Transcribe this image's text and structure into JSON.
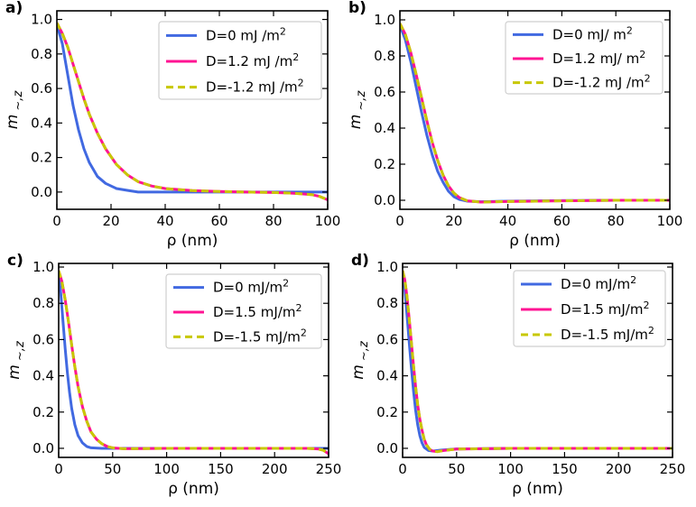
{
  "chart_data": [
    {
      "type": "line",
      "panel_label": "a)",
      "xlabel": "ρ (nm)",
      "ylabel": "m∼,z",
      "xlim": [
        0,
        100
      ],
      "ylim": [
        -0.1,
        1.05
      ],
      "xticks": [
        0,
        20,
        40,
        60,
        80,
        100
      ],
      "yticks": [
        0.0,
        0.2,
        0.4,
        0.6,
        0.8,
        1.0
      ],
      "legend_position": "top-right",
      "series": [
        {
          "name": "D=0 mJ /m²",
          "style": "solid",
          "color": "#4169e1",
          "x": [
            0,
            2,
            4,
            6,
            8,
            10,
            12,
            15,
            18,
            22,
            26,
            30,
            40,
            60,
            80,
            100
          ],
          "y": [
            0.97,
            0.86,
            0.68,
            0.5,
            0.36,
            0.25,
            0.17,
            0.09,
            0.05,
            0.02,
            0.01,
            0.0,
            0.0,
            0.0,
            0.0,
            0.0
          ]
        },
        {
          "name": "D=1.2 mJ /m²",
          "style": "solid",
          "color": "#ff1493",
          "x": [
            0,
            2,
            4,
            6,
            8,
            10,
            12,
            15,
            18,
            22,
            26,
            30,
            35,
            40,
            50,
            60,
            70,
            80,
            86,
            90,
            94,
            97,
            100
          ],
          "y": [
            0.98,
            0.92,
            0.84,
            0.74,
            0.64,
            0.54,
            0.45,
            0.34,
            0.25,
            0.16,
            0.1,
            0.06,
            0.035,
            0.02,
            0.008,
            0.003,
            0.0,
            -0.003,
            -0.006,
            -0.01,
            -0.015,
            -0.025,
            -0.045
          ]
        },
        {
          "name": "D=-1.2 mJ /m²",
          "style": "dashed",
          "color": "#c8c800",
          "x": [
            0,
            2,
            4,
            6,
            8,
            10,
            12,
            15,
            18,
            22,
            26,
            30,
            35,
            40,
            50,
            60,
            70,
            80,
            86,
            90,
            94,
            97,
            100
          ],
          "y": [
            0.98,
            0.92,
            0.84,
            0.74,
            0.64,
            0.54,
            0.45,
            0.34,
            0.25,
            0.16,
            0.1,
            0.06,
            0.035,
            0.02,
            0.008,
            0.003,
            0.0,
            -0.003,
            -0.006,
            -0.01,
            -0.015,
            -0.025,
            -0.045
          ]
        }
      ]
    },
    {
      "type": "line",
      "panel_label": "b)",
      "xlabel": "ρ (nm)",
      "ylabel": "m∼,z",
      "xlim": [
        0,
        100
      ],
      "ylim": [
        -0.05,
        1.05
      ],
      "xticks": [
        0,
        20,
        40,
        60,
        80,
        100
      ],
      "yticks": [
        0.0,
        0.2,
        0.4,
        0.6,
        0.8,
        1.0
      ],
      "legend_position": "top-right",
      "series": [
        {
          "name": "D=0 mJ/ m²",
          "style": "solid",
          "color": "#4169e1",
          "x": [
            0,
            2,
            4,
            6,
            8,
            10,
            12,
            14,
            16,
            18,
            20,
            22,
            25,
            30,
            40,
            60,
            80,
            100
          ],
          "y": [
            0.97,
            0.89,
            0.77,
            0.63,
            0.49,
            0.36,
            0.25,
            0.16,
            0.1,
            0.05,
            0.02,
            0.005,
            -0.005,
            -0.008,
            -0.005,
            -0.002,
            0.0,
            0.0
          ]
        },
        {
          "name": "D=1.2 mJ/ m²",
          "style": "solid",
          "color": "#ff1493",
          "x": [
            0,
            2,
            4,
            6,
            8,
            10,
            12,
            14,
            16,
            18,
            20,
            22,
            25,
            30,
            40,
            60,
            80,
            100
          ],
          "y": [
            0.98,
            0.92,
            0.82,
            0.7,
            0.57,
            0.44,
            0.32,
            0.22,
            0.14,
            0.08,
            0.04,
            0.015,
            -0.003,
            -0.01,
            -0.007,
            -0.003,
            0.0,
            0.0
          ]
        },
        {
          "name": "D=-1.2 mJ /m²",
          "style": "dashed",
          "color": "#c8c800",
          "x": [
            0,
            2,
            4,
            6,
            8,
            10,
            12,
            14,
            16,
            18,
            20,
            22,
            25,
            30,
            40,
            60,
            80,
            100
          ],
          "y": [
            0.98,
            0.92,
            0.82,
            0.7,
            0.57,
            0.44,
            0.32,
            0.22,
            0.14,
            0.08,
            0.04,
            0.015,
            -0.003,
            -0.01,
            -0.007,
            -0.003,
            0.0,
            0.0
          ]
        }
      ]
    },
    {
      "type": "line",
      "panel_label": "c)",
      "xlabel": "ρ (nm)",
      "ylabel": "m∼,z",
      "xlim": [
        0,
        250
      ],
      "ylim": [
        -0.05,
        1.02
      ],
      "xticks": [
        0,
        50,
        100,
        150,
        200,
        250
      ],
      "yticks": [
        0.0,
        0.2,
        0.4,
        0.6,
        0.8,
        1.0
      ],
      "legend_position": "top-right",
      "series": [
        {
          "name": "D=0 mJ/m²",
          "style": "solid",
          "color": "#4169e1",
          "x": [
            0,
            2,
            4,
            6,
            8,
            10,
            12,
            15,
            18,
            22,
            26,
            30,
            40,
            60,
            100,
            150,
            200,
            250
          ],
          "y": [
            0.96,
            0.85,
            0.7,
            0.55,
            0.42,
            0.31,
            0.22,
            0.13,
            0.07,
            0.03,
            0.01,
            0.003,
            0.0,
            0.0,
            0.0,
            0.0,
            0.0,
            0.0
          ]
        },
        {
          "name": "D=1.5 mJ/m²",
          "style": "solid",
          "color": "#ff1493",
          "x": [
            0,
            3,
            6,
            9,
            12,
            15,
            18,
            22,
            26,
            30,
            35,
            40,
            45,
            50,
            60,
            80,
            100,
            150,
            200,
            230,
            240,
            245,
            250
          ],
          "y": [
            0.98,
            0.92,
            0.82,
            0.7,
            0.57,
            0.45,
            0.34,
            0.23,
            0.15,
            0.09,
            0.05,
            0.025,
            0.01,
            0.003,
            -0.002,
            -0.001,
            0.0,
            0.0,
            0.0,
            0.0,
            -0.003,
            -0.01,
            -0.03
          ]
        },
        {
          "name": "D=-1.5 mJ/m²",
          "style": "dashed",
          "color": "#c8c800",
          "x": [
            0,
            3,
            6,
            9,
            12,
            15,
            18,
            22,
            26,
            30,
            35,
            40,
            45,
            50,
            60,
            80,
            100,
            150,
            200,
            230,
            240,
            245,
            250
          ],
          "y": [
            0.98,
            0.92,
            0.82,
            0.7,
            0.57,
            0.45,
            0.34,
            0.23,
            0.15,
            0.09,
            0.05,
            0.025,
            0.01,
            0.003,
            -0.002,
            -0.001,
            0.0,
            0.0,
            0.0,
            0.0,
            -0.003,
            -0.01,
            -0.03
          ]
        }
      ]
    },
    {
      "type": "line",
      "panel_label": "d)",
      "xlabel": "ρ (nm)",
      "ylabel": "m∼,z",
      "xlim": [
        0,
        250
      ],
      "ylim": [
        -0.05,
        1.02
      ],
      "xticks": [
        0,
        50,
        100,
        150,
        200,
        250
      ],
      "yticks": [
        0.0,
        0.2,
        0.4,
        0.6,
        0.8,
        1.0
      ],
      "legend_position": "top-right",
      "series": [
        {
          "name": "D=0 mJ/m²",
          "style": "solid",
          "color": "#4169e1",
          "x": [
            0,
            2,
            4,
            6,
            8,
            10,
            12,
            14,
            16,
            18,
            20,
            24,
            28,
            35,
            50,
            100,
            150,
            200,
            250
          ],
          "y": [
            0.96,
            0.88,
            0.74,
            0.59,
            0.45,
            0.32,
            0.21,
            0.13,
            0.07,
            0.03,
            0.005,
            -0.012,
            -0.015,
            -0.01,
            -0.003,
            0.0,
            0.0,
            0.0,
            0.0
          ]
        },
        {
          "name": "D=1.5 mJ/m²",
          "style": "solid",
          "color": "#ff1493",
          "x": [
            0,
            2,
            4,
            6,
            8,
            10,
            12,
            14,
            16,
            18,
            20,
            22,
            25,
            28,
            32,
            38,
            50,
            100,
            150,
            200,
            250
          ],
          "y": [
            0.98,
            0.93,
            0.84,
            0.72,
            0.59,
            0.46,
            0.34,
            0.24,
            0.16,
            0.1,
            0.05,
            0.02,
            -0.005,
            -0.015,
            -0.018,
            -0.012,
            -0.004,
            0.0,
            0.0,
            0.0,
            0.0
          ]
        },
        {
          "name": "D=-1.5 mJ/m²",
          "style": "dashed",
          "color": "#c8c800",
          "x": [
            0,
            2,
            4,
            6,
            8,
            10,
            12,
            14,
            16,
            18,
            20,
            22,
            25,
            28,
            32,
            38,
            50,
            100,
            150,
            200,
            250
          ],
          "y": [
            0.98,
            0.93,
            0.84,
            0.72,
            0.59,
            0.46,
            0.34,
            0.24,
            0.16,
            0.1,
            0.05,
            0.02,
            -0.005,
            -0.015,
            -0.018,
            -0.012,
            -0.004,
            0.0,
            0.0,
            0.0,
            0.0
          ]
        }
      ]
    }
  ]
}
